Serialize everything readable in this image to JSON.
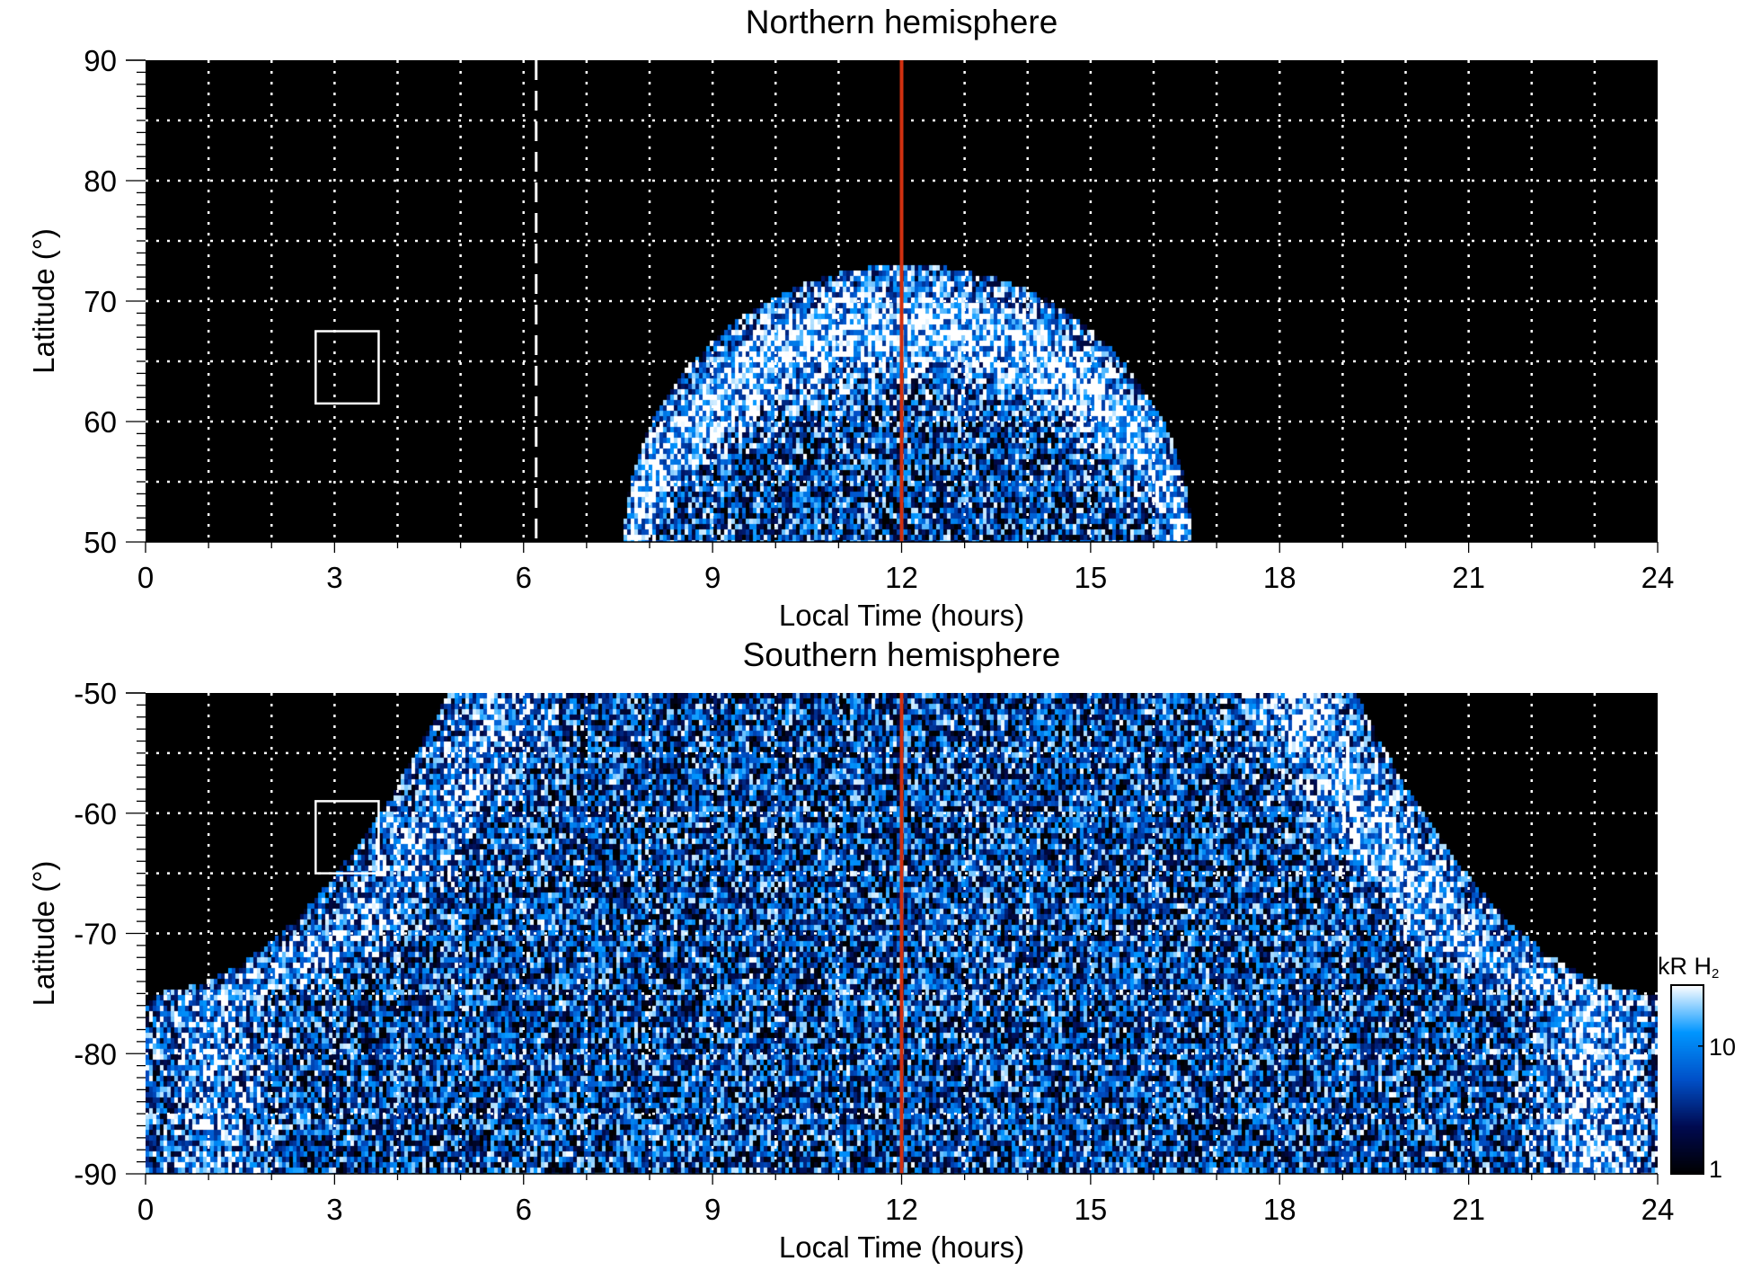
{
  "chart_data": [
    {
      "type": "heatmap",
      "title": "Northern hemisphere",
      "xlabel": "Local Time (hours)",
      "ylabel": "Latitude (°)",
      "xlim": [
        0,
        24
      ],
      "ylim": [
        50,
        90
      ],
      "xticks": [
        "0",
        "3",
        "6",
        "9",
        "12",
        "15",
        "18",
        "21",
        "24"
      ],
      "yticks": [
        "50",
        "60",
        "70",
        "80",
        "90"
      ],
      "xtick_values": [
        0,
        3,
        6,
        9,
        12,
        15,
        18,
        21,
        24
      ],
      "ytick_values": [
        50,
        60,
        70,
        80,
        90
      ],
      "grid": true,
      "reference_lines": [
        {
          "x": 12,
          "color": "#d03010",
          "style": "solid"
        },
        {
          "x": 6.2,
          "color": "#ffffff",
          "style": "dashed"
        }
      ],
      "box": {
        "lt": [
          2.7,
          3.7
        ],
        "lat": [
          61.5,
          67.5
        ]
      },
      "emission_region": {
        "lt_min_at_edge": 7.6,
        "lt_max_at_edge": 16.6,
        "max_lat": 73,
        "bright_ring_lat": 67
      }
    },
    {
      "type": "heatmap",
      "title": "Southern hemisphere",
      "xlabel": "Local Time (hours)",
      "ylabel": "Latitude (°)",
      "xlim": [
        0,
        24
      ],
      "ylim": [
        -90,
        -50
      ],
      "xticks": [
        "0",
        "3",
        "6",
        "9",
        "12",
        "15",
        "18",
        "21",
        "24"
      ],
      "yticks": [
        "-90",
        "-80",
        "-70",
        "-60",
        "-50"
      ],
      "xtick_values": [
        0,
        3,
        6,
        9,
        12,
        15,
        18,
        21,
        24
      ],
      "ytick_values": [
        -90,
        -80,
        -70,
        -60,
        -50
      ],
      "grid": true,
      "reference_lines": [
        {
          "x": 12,
          "color": "#d03010",
          "style": "solid"
        }
      ],
      "box": {
        "lt": [
          2.7,
          3.7
        ],
        "lat": [
          -65,
          -59
        ]
      },
      "emission_region": {
        "lt_min_at_edge": 4.8,
        "lt_max_at_edge": 19.2,
        "full_coverage_below_lat": -75
      }
    }
  ],
  "colorbar": {
    "label": "kR H",
    "label_sub": "2",
    "ticks": [
      "1",
      "10"
    ],
    "tick_values": [
      1,
      10
    ],
    "range": [
      1,
      30
    ],
    "scale": "log",
    "colors": [
      "#000000",
      "#000a50",
      "#0050c8",
      "#0096ff",
      "#ffffff"
    ]
  }
}
